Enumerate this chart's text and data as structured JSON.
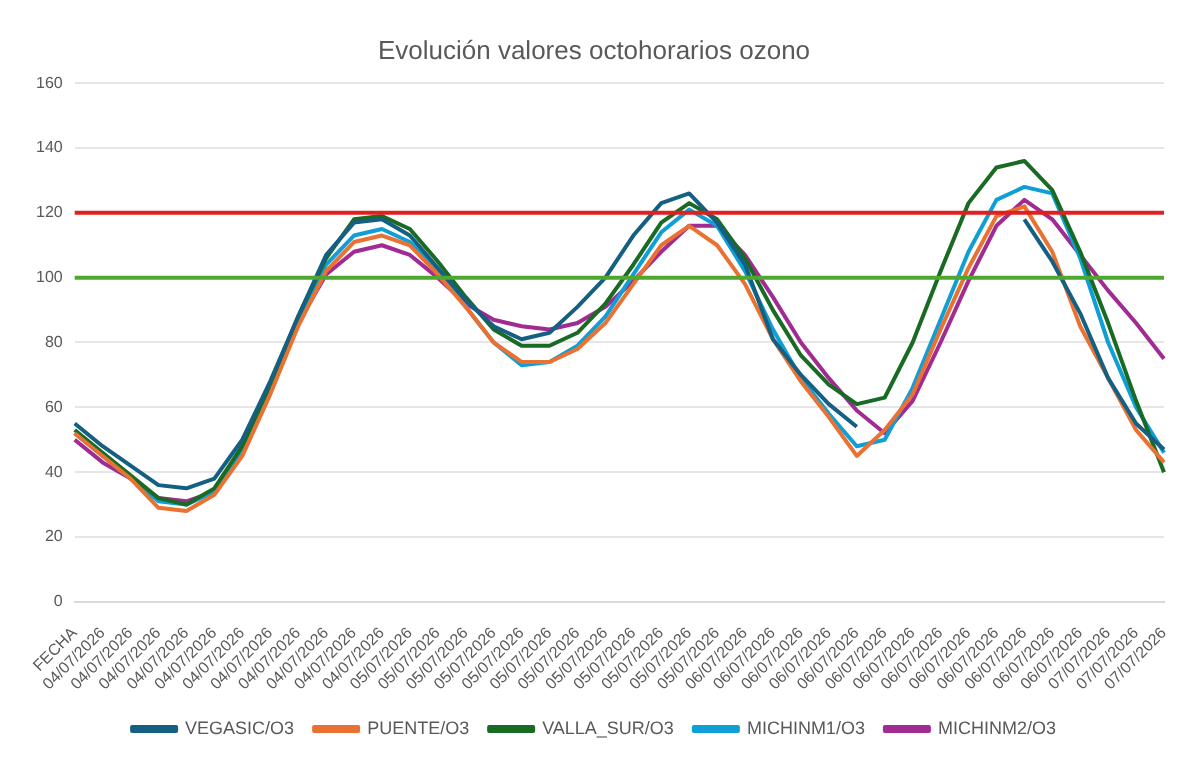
{
  "chart_data": {
    "type": "line",
    "title": "Evolución valores octohorarios ozono",
    "categories": [
      "FECHA",
      "04/07/2026",
      "04/07/2026",
      "04/07/2026",
      "04/07/2026",
      "04/07/2026",
      "04/07/2026",
      "04/07/2026",
      "04/07/2026",
      "04/07/2026",
      "04/07/2026",
      "04/07/2026",
      "05/07/2026",
      "05/07/2026",
      "05/07/2026",
      "05/07/2026",
      "05/07/2026",
      "05/07/2026",
      "05/07/2026",
      "05/07/2026",
      "05/07/2026",
      "05/07/2026",
      "05/07/2026",
      "05/07/2026",
      "06/07/2026",
      "06/07/2026",
      "06/07/2026",
      "06/07/2026",
      "06/07/2026",
      "06/07/2026",
      "06/07/2026",
      "06/07/2026",
      "06/07/2026",
      "06/07/2026",
      "06/07/2026",
      "06/07/2026",
      "06/07/2026",
      "07/07/2026",
      "07/07/2026",
      "07/07/2026"
    ],
    "series": [
      {
        "name": "VEGASIC/O3",
        "color": "#156082",
        "values": [
          55,
          48,
          42,
          36,
          35,
          38,
          50,
          68,
          88,
          107,
          117,
          118,
          113,
          103,
          93,
          85,
          81,
          83,
          91,
          100,
          113,
          123,
          126,
          117,
          104,
          81,
          70,
          61,
          54,
          null,
          null,
          null,
          null,
          null,
          118,
          105,
          89,
          69,
          55,
          47
        ]
      },
      {
        "name": "PUENTE/O3",
        "color": "#e97132",
        "values": [
          52,
          45,
          38,
          29,
          28,
          33,
          45,
          64,
          85,
          102,
          111,
          113,
          110,
          101,
          91,
          80,
          74,
          74,
          78,
          86,
          98,
          110,
          116,
          110,
          98,
          81,
          68,
          57,
          45,
          53,
          64,
          84,
          103,
          119,
          122,
          108,
          85,
          69,
          53,
          43
        ]
      },
      {
        "name": "VALLA_SUR/O3",
        "color": "#196b24",
        "values": [
          53,
          46,
          39,
          32,
          30,
          35,
          48,
          67,
          88,
          106,
          118,
          119,
          115,
          105,
          94,
          84,
          79,
          79,
          83,
          92,
          104,
          117,
          123,
          118,
          106,
          90,
          76,
          67,
          61,
          63,
          80,
          102,
          123,
          134,
          136,
          127,
          108,
          86,
          62,
          40
        ]
      },
      {
        "name": "MICHINM1/O3",
        "color": "#0f9ed5",
        "values": [
          52,
          45,
          38,
          31,
          30,
          34,
          46,
          66,
          87,
          104,
          113,
          115,
          111,
          102,
          91,
          80,
          73,
          74,
          79,
          88,
          101,
          114,
          121,
          116,
          102,
          84,
          69,
          58,
          48,
          50,
          66,
          87,
          108,
          124,
          128,
          126,
          106,
          80,
          60,
          46
        ]
      },
      {
        "name": "MICHINM2/O3",
        "color": "#a02b93",
        "values": [
          50,
          43,
          38,
          32,
          31,
          34,
          48,
          66,
          86,
          101,
          108,
          110,
          107,
          100,
          92,
          87,
          85,
          84,
          86,
          91,
          99,
          108,
          116,
          116,
          107,
          94,
          80,
          69,
          59,
          52,
          62,
          80,
          99,
          116,
          124,
          118,
          107,
          96,
          86,
          75
        ]
      }
    ],
    "ylim": [
      0,
      160
    ],
    "yticks": [
      0,
      20,
      40,
      60,
      80,
      100,
      120,
      140,
      160
    ],
    "grid": "y",
    "legend": "bottom",
    "ref_lines": [
      {
        "axis": "y",
        "value": 120,
        "color": "#e02020"
      },
      {
        "axis": "y",
        "value": 100,
        "color": "#4ea72e"
      }
    ]
  }
}
